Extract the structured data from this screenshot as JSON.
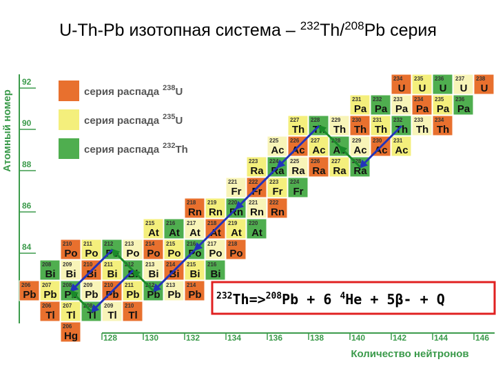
{
  "title": [
    "U-Th-Pb изотопная система – ",
    "232",
    "Th/",
    "208",
    "Pb серия"
  ],
  "y_axis_label": "Атомный номер",
  "x_axis_label": "Количество нейтронов",
  "y_ticks": [
    "92",
    "90",
    "88",
    "86",
    "84"
  ],
  "x_ticks": [
    "128",
    "130",
    "132",
    "134",
    "136",
    "138",
    "140",
    "142",
    "144",
    "146"
  ],
  "legend": [
    {
      "label": "серия распада",
      "mass": "238",
      "element": "U",
      "color": "#e8702e"
    },
    {
      "label": "серия распада",
      "mass": "235",
      "element": "U",
      "color": "#f4ef7c"
    },
    {
      "label": "серия распада",
      "mass": "232",
      "element": "Th",
      "color": "#4fae4f"
    }
  ],
  "equation": [
    "232",
    "Th=>",
    "208",
    "Pb + 6 ",
    "4",
    "He + 5β- + Q"
  ],
  "rows": [
    {
      "element": "U",
      "masses": [
        "234",
        "235",
        "236",
        "237",
        "238"
      ]
    },
    {
      "element": "Pa",
      "masses": [
        "231",
        "232",
        "233",
        "234",
        "235",
        "236"
      ]
    },
    {
      "element": "Th",
      "masses": [
        "227",
        "228",
        "229",
        "230",
        "231",
        "232",
        "233",
        "234"
      ]
    },
    {
      "element": "Ac",
      "masses": [
        "225",
        "226",
        "227",
        "228",
        "229",
        "230",
        "231"
      ]
    },
    {
      "element": "Ra",
      "masses": [
        "223",
        "224",
        "225",
        "226",
        "227",
        "228"
      ]
    },
    {
      "element": "Fr",
      "masses": [
        "221",
        "222",
        "223",
        "224"
      ]
    },
    {
      "element": "Rn",
      "masses": [
        "218",
        "219",
        "220",
        "221",
        "222"
      ]
    },
    {
      "element": "At",
      "masses": [
        "215",
        "216",
        "217",
        "218",
        "219",
        "220"
      ]
    },
    {
      "element": "Po",
      "masses": [
        "210",
        "211",
        "212",
        "213",
        "214",
        "215",
        "216",
        "217",
        "218"
      ]
    },
    {
      "element": "Bi",
      "masses": [
        "208",
        "209",
        "210",
        "211",
        "212",
        "213",
        "214",
        "215",
        "216"
      ]
    },
    {
      "element": "Pb",
      "masses": [
        "206",
        "207",
        "208",
        "209",
        "210",
        "211",
        "212",
        "213",
        "214"
      ]
    },
    {
      "element": "Tl",
      "masses": [
        "206",
        "207",
        "208",
        "209",
        "210"
      ]
    },
    {
      "element": "Hg",
      "masses": [
        "206"
      ]
    }
  ]
}
